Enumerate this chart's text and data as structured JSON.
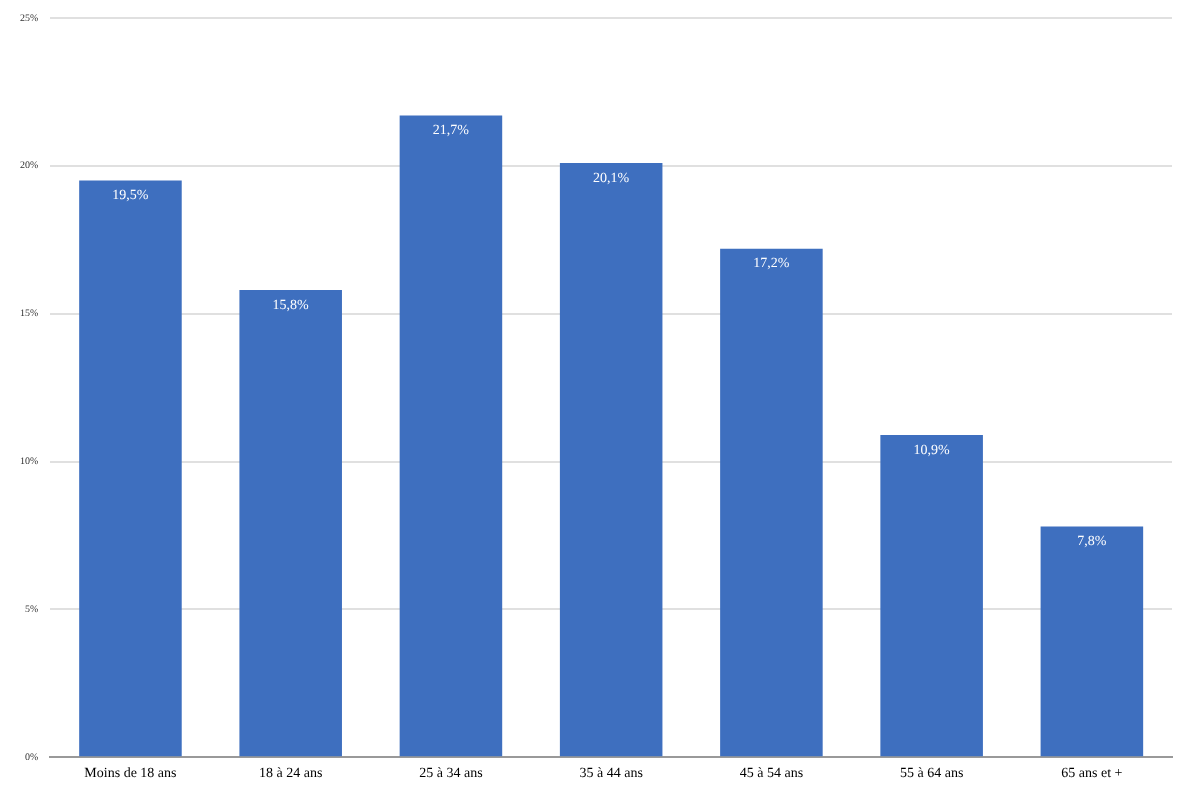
{
  "chart_data": {
    "type": "bar",
    "categories": [
      "Moins de 18 ans",
      "18 à 24 ans",
      "25 à 34 ans",
      "35 à 44 ans",
      "45 à 54 ans",
      "55 à 64 ans",
      "65 ans et +"
    ],
    "values": [
      19.5,
      15.8,
      21.7,
      20.1,
      17.2,
      10.9,
      7.8
    ],
    "value_labels": [
      "19,5%",
      "15,8%",
      "21,7%",
      "20,1%",
      "17,2%",
      "10,9%",
      "7,8%"
    ],
    "color": "#3e6fbf",
    "ylim": [
      0,
      25
    ],
    "yticks": [
      {
        "value": 0,
        "label": "0%"
      },
      {
        "value": 5,
        "label": "5%"
      },
      {
        "value": 10,
        "label": "10%"
      },
      {
        "value": 15,
        "label": "15%"
      },
      {
        "value": 20,
        "label": "20%"
      },
      {
        "value": 25,
        "label": "25%"
      }
    ],
    "grid": "y",
    "legend": false
  }
}
